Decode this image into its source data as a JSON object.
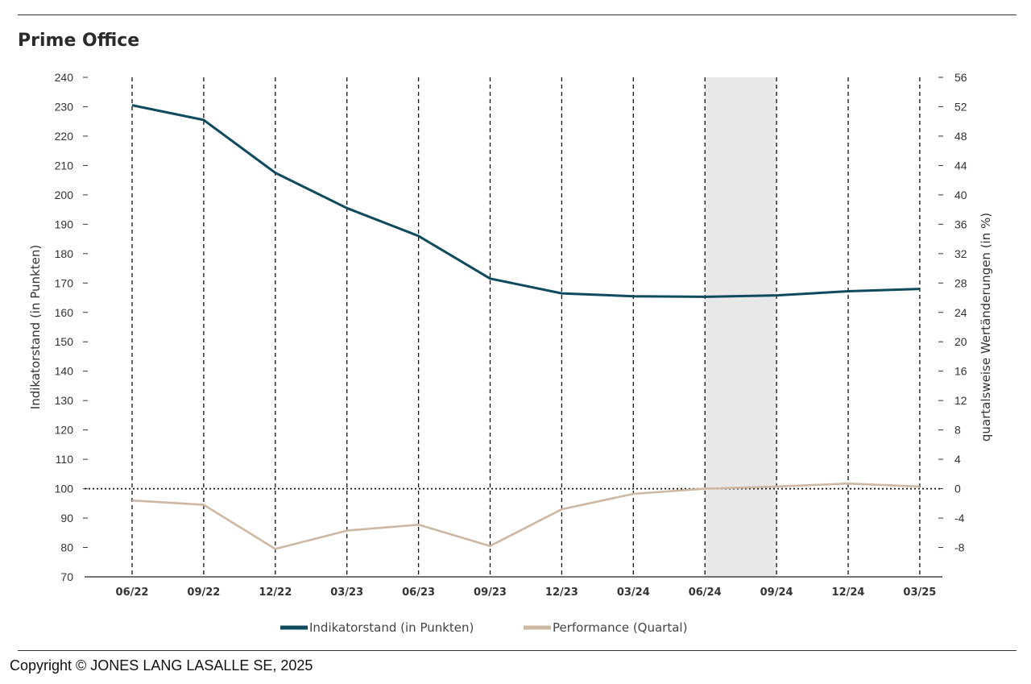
{
  "title": "Prime Office",
  "copyright": "Copyright © JONES LANG LASALLE SE, 2025",
  "chart_data": {
    "type": "line",
    "categories": [
      "06/22",
      "09/22",
      "12/22",
      "03/23",
      "06/23",
      "09/23",
      "12/23",
      "03/24",
      "06/24",
      "09/24",
      "12/24",
      "03/25"
    ],
    "series": [
      {
        "name": "Indikatorstand (in Punkten)",
        "axis": "left",
        "color": "#0f4a5f",
        "values": [
          230.5,
          225.5,
          207.5,
          195.5,
          186,
          171.5,
          166.5,
          165.5,
          165.3,
          165.8,
          167.2,
          168
        ]
      },
      {
        "name": "Performance (Quartal)",
        "axis": "right",
        "color": "#cdb8a4",
        "values": [
          -1.6,
          -2.2,
          -8.2,
          -5.7,
          -4.9,
          -7.8,
          -2.8,
          -0.7,
          0,
          0.3,
          0.7,
          0.3
        ]
      }
    ],
    "ylabel": "Indikatorstand (in Punkten)",
    "ylim": [
      70,
      240
    ],
    "yticks": [
      70,
      80,
      90,
      100,
      110,
      120,
      130,
      140,
      150,
      160,
      170,
      180,
      190,
      200,
      210,
      220,
      230,
      240
    ],
    "y2label": "quartalsweise Wertänderungen (in %)",
    "y2lim": [
      -12,
      56
    ],
    "y2ticks": [
      -8,
      -4,
      0,
      4,
      8,
      12,
      16,
      20,
      24,
      28,
      32,
      36,
      40,
      44,
      48,
      52,
      56
    ],
    "reference_line": {
      "axis": "right",
      "value": 0,
      "style": "dotted"
    },
    "highlight_band": {
      "from": "06/24",
      "to": "09/24",
      "color": "#e8e8e8"
    },
    "grid": "vertical dashed",
    "legend": "bottom"
  }
}
